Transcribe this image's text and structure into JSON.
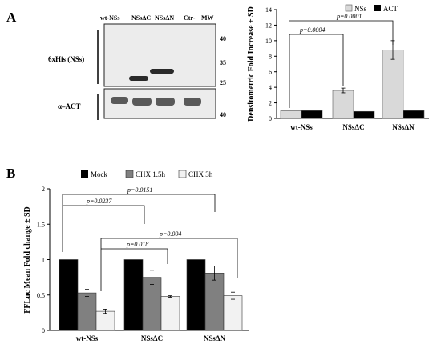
{
  "panels": {
    "a_letter": "A",
    "b_letter": "B"
  },
  "blot": {
    "lane_labels": [
      "wt-NSs",
      "NSsΔC",
      "NSsΔN",
      "Ctr-",
      "MW"
    ],
    "row_labels": [
      "6xHis (NSs)",
      "α–ACT"
    ],
    "mw_markers": [
      "40",
      "35",
      "25",
      "40"
    ],
    "colors": {
      "background": "#ececec",
      "band": "#2a2a2a"
    }
  },
  "chart_data": [
    {
      "type": "bar",
      "title": "",
      "xlabel": "",
      "ylabel": "Densitometric Fold Increase ± SD",
      "ylim": [
        0,
        14
      ],
      "yticks": [
        "0",
        "2",
        "4",
        "6",
        "8",
        "10",
        "12",
        "14"
      ],
      "grid": false,
      "legend": "top-right",
      "categories": [
        "wt-NSs",
        "NSsΔC",
        "NSsΔN"
      ],
      "series": [
        {
          "name": "NSs",
          "color": "#d9d9d9",
          "values": [
            1.0,
            3.6,
            8.8
          ],
          "errors": [
            0,
            0.3,
            1.2
          ]
        },
        {
          "name": "ACT",
          "color": "#000000",
          "values": [
            1.0,
            0.9,
            1.0
          ],
          "errors": [
            0,
            0,
            0
          ]
        }
      ],
      "annotations": [
        "p=0.0004",
        "p=0.0001"
      ]
    },
    {
      "type": "bar",
      "title": "",
      "xlabel": "",
      "ylabel": "FFLuc Mean Fold change ± SD",
      "ylim": [
        0,
        2
      ],
      "yticks": [
        "0",
        "0.5",
        "1",
        "1.5",
        "2"
      ],
      "grid": false,
      "legend": "top",
      "categories": [
        "wt-NSs",
        "NSsΔC",
        "NSsΔN"
      ],
      "series": [
        {
          "name": "Mock",
          "color": "#000000",
          "values": [
            1.0,
            1.0,
            1.0
          ],
          "errors": [
            0,
            0,
            0
          ]
        },
        {
          "name": "CHX 1.5h",
          "color": "#808080",
          "values": [
            0.53,
            0.75,
            0.81
          ],
          "errors": [
            0.05,
            0.1,
            0.1
          ]
        },
        {
          "name": "CHX 3h",
          "color": "#f2f2f2",
          "values": [
            0.27,
            0.48,
            0.49
          ],
          "errors": [
            0.03,
            0.01,
            0.05
          ]
        }
      ],
      "annotations": [
        "p=0.0151",
        "p=0.0237",
        "p=0.004",
        "p=0.018"
      ]
    }
  ]
}
